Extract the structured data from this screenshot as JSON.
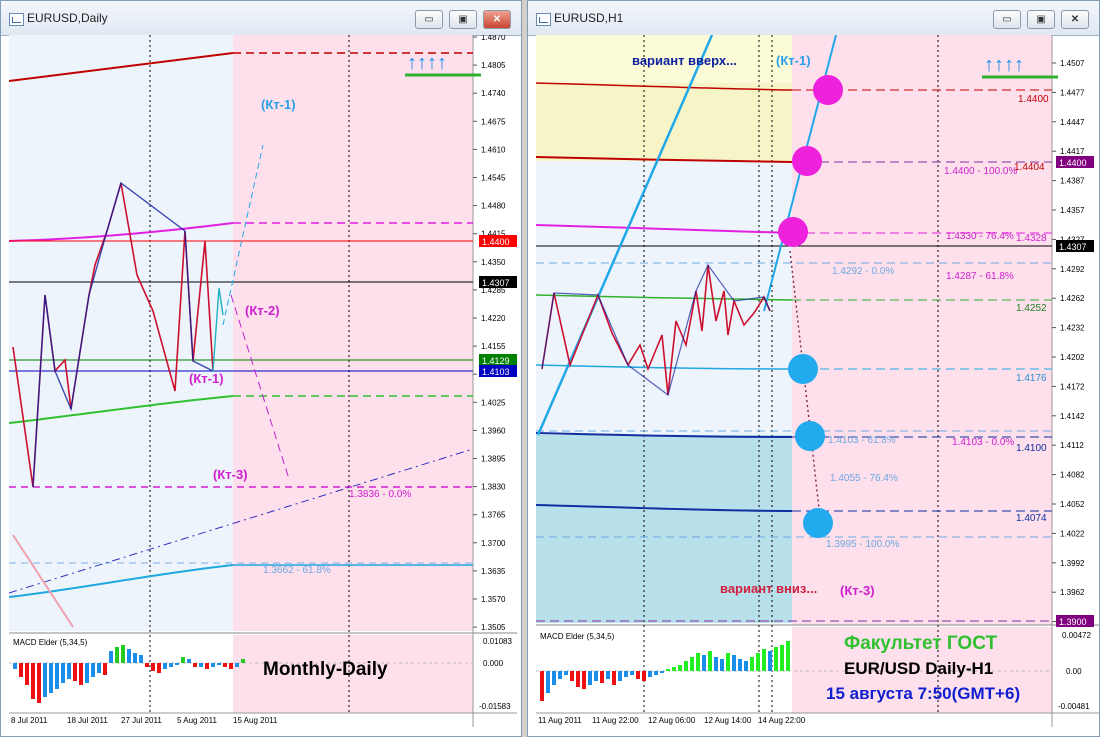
{
  "left_window": {
    "title": "EURUSD,Daily",
    "buttons": {
      "minimize": "▭",
      "restore": "▣",
      "close": "✕"
    },
    "price_scale": [
      "1.4870",
      "1.4805",
      "1.4740",
      "1.4675",
      "1.4610",
      "1.4545",
      "1.4480",
      "1.4415",
      "1.4350",
      "1.4285",
      "1.4220",
      "1.4155",
      "1.4090",
      "1.4025",
      "1.3960",
      "1.3895",
      "1.3830",
      "1.3765",
      "1.3700",
      "1.3635",
      "1.3570",
      "1.3505"
    ],
    "price_tags": [
      {
        "text": "1.4400",
        "bg": "#ff0000",
        "fg": "#ffffff"
      },
      {
        "text": "1.4307",
        "bg": "#000000",
        "fg": "#ffffff"
      },
      {
        "text": "1.4129",
        "bg": "#008000",
        "fg": "#ffffff"
      },
      {
        "text": "1.4103",
        "bg": "#0000c0",
        "fg": "#ffffff"
      }
    ],
    "annotations": {
      "kt1_upper": "(Кт-1)",
      "kt2": "(Кт-2)",
      "kt1_lower": "(Кт-1)",
      "kt3": "(Кт-3)"
    },
    "fib_labels": {
      "fib0": "1.3836 - 0.0%",
      "fib618": "1.3662 - 61.8%"
    },
    "arrows": "↑↑↑↑",
    "caption": "Monthly-Daily",
    "macd": {
      "label": "MACD Elder (5,34,5)",
      "scale": [
        "0.01083",
        "0.000",
        "-0.01583"
      ]
    },
    "dates": [
      "8 Jul 2011",
      "18 Jul 2011",
      "27 Jul 2011",
      "5 Aug 2011",
      "15 Aug 2011"
    ]
  },
  "right_window": {
    "title": "EURUSD,H1",
    "buttons": {
      "minimize": "▭",
      "restore": "▣",
      "close": "✕"
    },
    "price_scale": [
      "1.4507",
      "1.4477",
      "1.4447",
      "1.4417",
      "1.4387",
      "1.4357",
      "1.4327",
      "1.4292",
      "1.4262",
      "1.4232",
      "1.4202",
      "1.4172",
      "1.4142",
      "1.4112",
      "1.4082",
      "1.4052",
      "1.4022",
      "1.3992",
      "1.3962",
      "1.3932"
    ],
    "price_tags": [
      {
        "text": "1.4400",
        "bg": "#800080",
        "fg": "#ffffff"
      },
      {
        "text": "1.4307",
        "bg": "#000000",
        "fg": "#ffffff"
      },
      {
        "text": "1.3900",
        "bg": "#800080",
        "fg": "#ffffff"
      }
    ],
    "annotations": {
      "variant_up": "вариант вверх...",
      "kt1": "(Кт-1)",
      "variant_down": "вариант вниз...",
      "kt3": "(Кт-3)"
    },
    "level_labels": {
      "l4400a": "1.4400",
      "l4400b": "1.4400 - 100.0%",
      "l4404": "1.4404",
      "l4330": "1.4330 - 76.4%",
      "l4328": "1.4328",
      "l4292": "1.4292 - 0.0%",
      "l4287": "1.4287 - 61.8%",
      "l4252": "1.4252",
      "l4176": "1.4176",
      "l4103a": "1.4103 - 61.8%",
      "l4103b": "1.4103 - 0.0%",
      "l4100": "1.4100",
      "l4055": "1.4055 - 76.4%",
      "l4074": "1.4074",
      "l3995": "1.3995 - 100.0%"
    },
    "arrows": "↑↑↑↑",
    "caption": {
      "line1": "Факультет ГОСТ",
      "line2": "EUR/USD Daily-H1",
      "line3": "15 августа 7:50(GMT+6)"
    },
    "macd": {
      "label": "MACD Elder (5,34,5)",
      "scale": [
        "0.00472",
        "0.00",
        "-0.00481"
      ]
    },
    "dates": [
      "11 Aug 2011",
      "11 Aug 22:00",
      "12 Aug 06:00",
      "12 Aug 14:00",
      "14 Aug 22:00"
    ]
  }
}
